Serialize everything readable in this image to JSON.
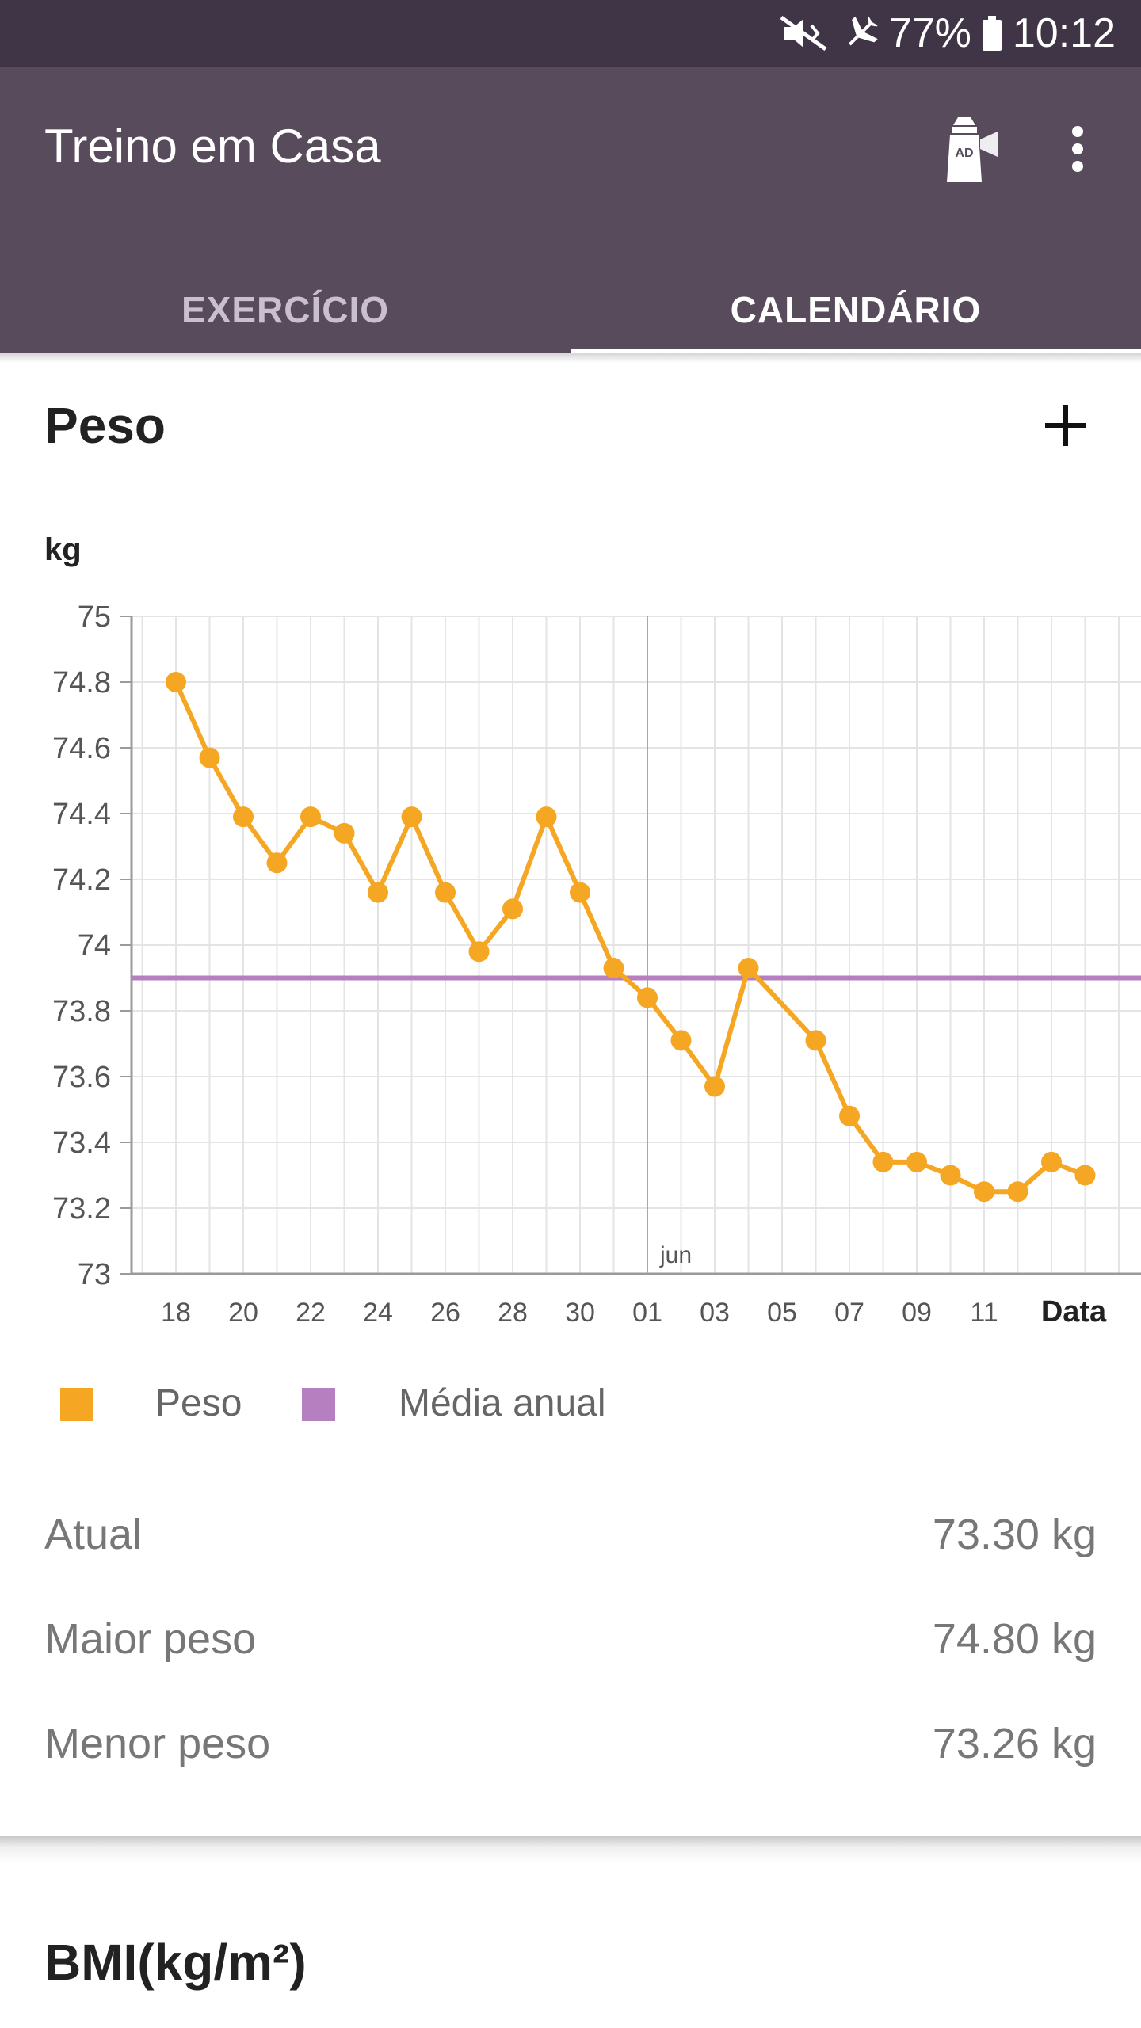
{
  "status_bar": {
    "battery": "77%",
    "time": "10:12"
  },
  "app_bar": {
    "title": "Treino em Casa",
    "ad_icon_text": "AD"
  },
  "tabs": [
    {
      "label": "EXERCÍCIO",
      "selected": false
    },
    {
      "label": "CALENDÁRIO",
      "selected": true
    }
  ],
  "weight_card": {
    "title": "Peso",
    "stats": [
      {
        "label": "Atual",
        "value": "73.30 kg"
      },
      {
        "label": "Maior peso",
        "value": "74.80 kg"
      },
      {
        "label": "Menor peso",
        "value": "73.26 kg"
      }
    ]
  },
  "bmi_card": {
    "title": "BMI(kg/m²)"
  },
  "chart_data": {
    "type": "line",
    "ylabel": "kg",
    "xlabel": "Data",
    "ylim": [
      73,
      75
    ],
    "yticks": [
      73,
      73.2,
      73.4,
      73.6,
      73.8,
      74,
      74.2,
      74.4,
      74.6,
      74.8,
      75
    ],
    "ytick_labels": [
      "73",
      "73.2",
      "73.4",
      "73.6",
      "73.8",
      "74",
      "74.2",
      "74.4",
      "74.6",
      "74.8",
      "75"
    ],
    "xtick_labels": [
      "18",
      "20",
      "22",
      "24",
      "26",
      "28",
      "30",
      "01",
      "03",
      "05",
      "07",
      "09",
      "11"
    ],
    "month_marker": {
      "label": "jun",
      "at": "01"
    },
    "grid": true,
    "series": [
      {
        "name": "Peso",
        "color": "#f5a623",
        "x": [
          "18",
          "19",
          "20",
          "21",
          "22",
          "23",
          "24",
          "25",
          "26",
          "27",
          "28",
          "29",
          "30",
          "31",
          "01",
          "02",
          "03",
          "04",
          "06",
          "07",
          "08",
          "09",
          "10",
          "11",
          "12",
          "13",
          "14"
        ],
        "values": [
          74.8,
          74.57,
          74.39,
          74.25,
          74.39,
          74.34,
          74.16,
          74.39,
          74.16,
          73.98,
          74.11,
          74.39,
          74.16,
          73.93,
          73.84,
          73.71,
          73.57,
          73.93,
          73.71,
          73.48,
          73.34,
          73.34,
          73.3,
          73.25,
          73.25,
          73.34,
          73.3
        ]
      },
      {
        "name": "Média anual",
        "color": "#b57fc0",
        "type": "hline",
        "value": 73.9
      }
    ],
    "legend": {
      "position": "bottom-left",
      "entries": [
        "Peso",
        "Média anual"
      ]
    }
  }
}
